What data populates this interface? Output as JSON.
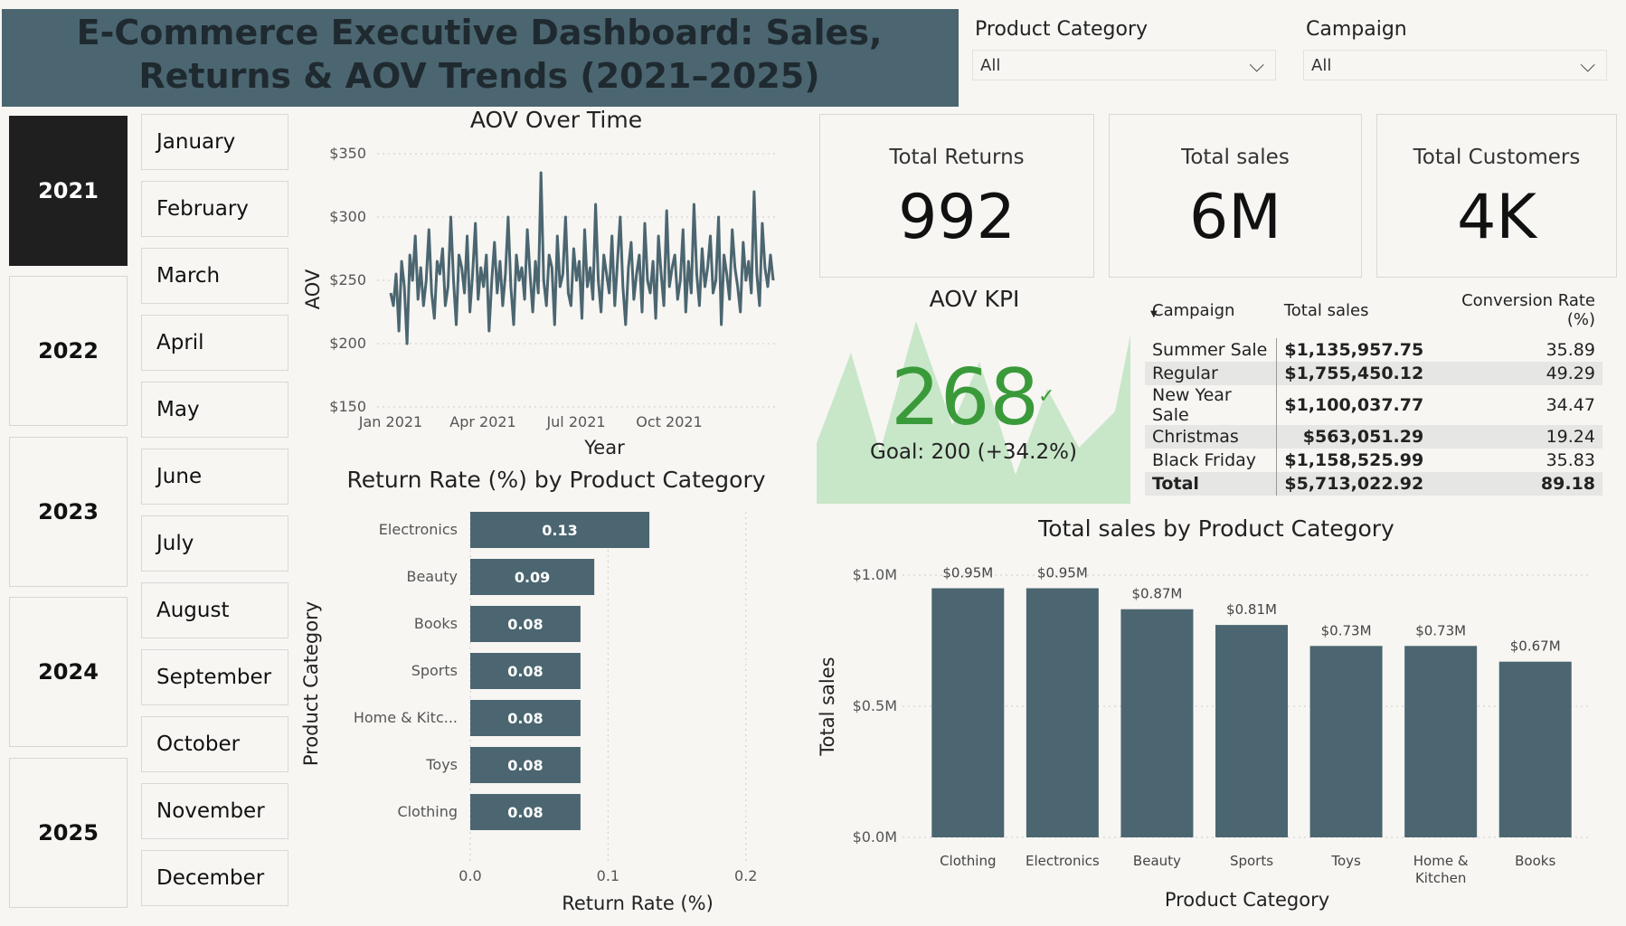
{
  "header": {
    "title_line1": "E-Commerce Executive Dashboard: Sales,",
    "title_line2": "Returns & AOV Trends (2021–2025)"
  },
  "slicers": {
    "category_label": "Product Category",
    "category_value": "All",
    "campaign_label": "Campaign",
    "campaign_value": "All"
  },
  "years": [
    "2021",
    "2022",
    "2023",
    "2024",
    "2025"
  ],
  "selected_year": "2021",
  "months": [
    "January",
    "February",
    "March",
    "April",
    "May",
    "June",
    "July",
    "August",
    "September",
    "October",
    "November",
    "December"
  ],
  "cards": {
    "returns_label": "Total Returns",
    "returns_value": "992",
    "sales_label": "Total sales",
    "sales_value": "6M",
    "customers_label": "Total Customers",
    "customers_value": "4K"
  },
  "kpi": {
    "title": "AOV KPI",
    "value": "268",
    "check": "✓",
    "goal": "Goal: 200 (+34.2%)"
  },
  "campaign_table": {
    "headers": [
      "Campaign",
      "Total sales",
      "Conversion Rate (%)"
    ],
    "rows": [
      [
        "Summer Sale",
        "$1,135,957.75",
        "35.89"
      ],
      [
        "Regular",
        "$1,755,450.12",
        "49.29"
      ],
      [
        "New Year Sale",
        "$1,100,037.77",
        "34.47"
      ],
      [
        "Christmas",
        "$563,051.29",
        "19.24"
      ],
      [
        "Black Friday",
        "$1,158,525.99",
        "35.83"
      ]
    ],
    "total": [
      "Total",
      "$5,713,022.92",
      "89.18"
    ]
  },
  "chart_data": [
    {
      "type": "line",
      "title": "AOV Over Time",
      "xlabel": "Year",
      "ylabel": "AOV",
      "x_ticks": [
        "Jan 2021",
        "Apr 2021",
        "Jul 2021",
        "Oct 2021"
      ],
      "y_ticks": [
        "$350",
        "$300",
        "$250",
        "$200",
        "$150"
      ],
      "ylim": [
        150,
        350
      ],
      "series": [
        {
          "values": [
            240,
            230,
            255,
            210,
            265,
            245,
            200,
            270,
            250,
            285,
            235,
            260,
            230,
            250,
            290,
            240,
            220,
            265,
            255,
            275,
            230,
            245,
            300,
            250,
            215,
            270,
            260,
            240,
            285,
            225,
            255,
            295,
            235,
            260,
            245,
            270,
            210,
            250,
            280,
            240,
            265,
            230,
            255,
            300,
            245,
            215,
            270,
            250,
            260,
            235,
            290,
            255,
            225,
            265,
            240,
            335,
            250,
            230,
            270,
            260,
            215,
            285,
            245,
            255,
            300,
            240,
            230,
            275,
            250,
            265,
            220,
            290,
            245,
            260,
            235,
            310,
            250,
            225,
            270,
            255,
            240,
            285,
            230,
            265,
            300,
            245,
            215,
            260,
            280,
            235,
            255,
            270,
            225,
            295,
            250,
            240,
            265,
            220,
            285,
            255,
            230,
            305,
            245,
            260,
            270,
            235,
            250,
            290,
            225,
            265,
            240,
            310,
            255,
            230,
            275,
            245,
            260,
            285,
            240,
            250,
            300,
            215,
            270,
            255,
            235,
            290,
            260,
            245,
            225,
            280,
            250,
            265,
            240,
            320,
            255,
            230,
            295,
            260,
            245,
            270,
            250
          ]
        }
      ]
    },
    {
      "type": "bar",
      "orientation": "horizontal",
      "title": "Return Rate (%) by Product Category",
      "xlabel": "Return Rate (%)",
      "ylabel": "Product Category",
      "categories": [
        "Electronics",
        "Beauty",
        "Books",
        "Sports",
        "Home & Kitc...",
        "Toys",
        "Clothing"
      ],
      "values": [
        0.13,
        0.09,
        0.08,
        0.08,
        0.08,
        0.08,
        0.08
      ],
      "x_ticks": [
        "0.0",
        "0.1",
        "0.2"
      ],
      "xlim": [
        0,
        0.21
      ]
    },
    {
      "type": "bar",
      "title": "Total sales by Product Category",
      "xlabel": "Product Category",
      "ylabel": "Total sales",
      "categories": [
        "Clothing",
        "Electronics",
        "Beauty",
        "Sports",
        "Toys",
        "Home & Kitchen",
        "Books"
      ],
      "category_lines": [
        [
          "Clothing"
        ],
        [
          "Electronics"
        ],
        [
          "Beauty"
        ],
        [
          "Sports"
        ],
        [
          "Toys"
        ],
        [
          "Home &",
          "Kitchen"
        ],
        [
          "Books"
        ]
      ],
      "values": [
        0.95,
        0.95,
        0.87,
        0.81,
        0.73,
        0.73,
        0.67
      ],
      "labels": [
        "$0.95M",
        "$0.95M",
        "$0.87M",
        "$0.81M",
        "$0.73M",
        "$0.73M",
        "$0.67M"
      ],
      "y_ticks": [
        "$1.0M",
        "$0.5M",
        "$0.0M"
      ],
      "ylim": [
        0,
        1.0
      ]
    }
  ],
  "colors": {
    "bar": "#4b6670",
    "kpi_green": "#3a9a3a",
    "kpi_area": "#bfe3bf"
  }
}
